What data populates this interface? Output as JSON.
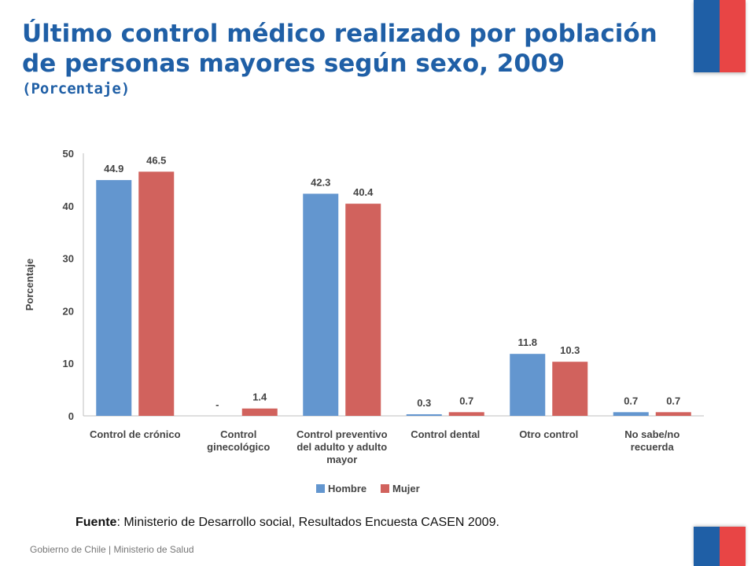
{
  "header": {
    "title": "Último control médico realizado por población de personas mayores según sexo, 2009",
    "subtitle": "(Porcentaje)"
  },
  "chart_data": {
    "type": "bar",
    "title": "",
    "ylabel": "Porcentaje",
    "xlabel": "",
    "ylim": [
      0,
      50
    ],
    "yticks": [
      0,
      10,
      20,
      30,
      40,
      50
    ],
    "categories": [
      [
        "Control de crónico"
      ],
      [
        "Control",
        "ginecológico"
      ],
      [
        "Control preventivo",
        "del adulto y adulto",
        "mayor"
      ],
      [
        "Control dental"
      ],
      [
        "Otro control"
      ],
      [
        "No sabe/no",
        "recuerda"
      ]
    ],
    "series": [
      {
        "name": "Hombre",
        "color": "#6396cf",
        "values": [
          44.9,
          0,
          42.3,
          0.3,
          11.8,
          0.7
        ],
        "labels": [
          "44.9",
          "-",
          "42.3",
          "0.3",
          "11.8",
          "0.7"
        ]
      },
      {
        "name": "Mujer",
        "color": "#d1625d",
        "values": [
          46.5,
          1.4,
          40.4,
          0.7,
          10.3,
          0.7
        ],
        "labels": [
          "46.5",
          "1.4",
          "40.4",
          "0.7",
          "10.3",
          "0.7"
        ]
      }
    ],
    "legend_position": "bottom-center"
  },
  "source": {
    "label": "Fuente",
    "text": ": Ministerio de Desarrollo social, Resultados Encuesta CASEN 2009."
  },
  "footer": {
    "text": "Gobierno de Chile | Ministerio de Salud"
  }
}
